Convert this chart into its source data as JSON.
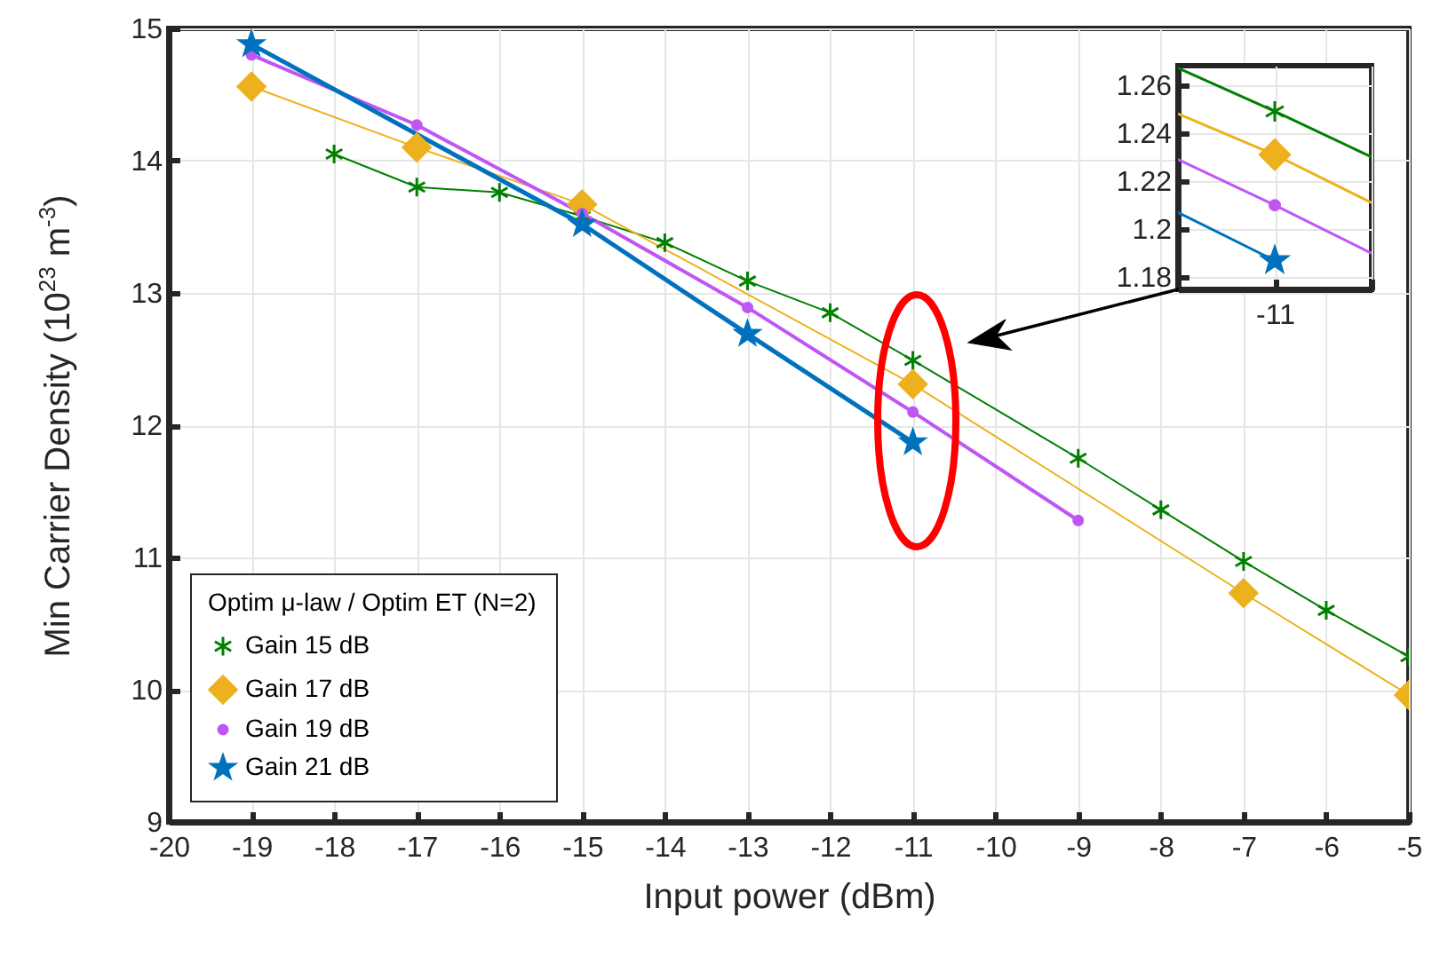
{
  "chart_data": [
    {
      "type": "line",
      "xlabel": "Input power (dBm)",
      "ylabel": "Min Carrier Density (10$^{23}$ m$^{-3}$)",
      "legend_title": "Optim μ-law / Optim ET (N=2)",
      "xlim": [
        -20,
        -5
      ],
      "xticks": [
        -20,
        -19,
        -18,
        -17,
        -16,
        -15,
        -14,
        -13,
        -12,
        -11,
        -10,
        -9,
        -8,
        -7,
        -6,
        -5
      ],
      "ylim": [
        9,
        15
      ],
      "yticks": [
        9,
        10,
        11,
        12,
        13,
        14,
        15
      ],
      "grid": true,
      "legend": "bottom left",
      "series": [
        {
          "name": "Gain 15 dB",
          "color": "#008000",
          "marker": "cross",
          "x": [
            -18,
            -17,
            -16,
            -15,
            -14,
            -13,
            -12,
            -11,
            -9,
            -8,
            -7,
            -6,
            -5
          ],
          "values": [
            14.05,
            13.8,
            13.76,
            13.58,
            13.38,
            13.09,
            12.85,
            12.49,
            11.75,
            11.36,
            10.97,
            10.6,
            10.25
          ]
        },
        {
          "name": "Gain 17 dB",
          "color": "#edb120",
          "marker": "diamond",
          "x": [
            -19,
            -17,
            -15,
            -11,
            -7,
            -5
          ],
          "values": [
            14.56,
            14.1,
            13.67,
            12.31,
            10.73,
            9.96
          ]
        },
        {
          "name": "Gain 19 dB",
          "color": "#bf55f5",
          "marker": "circle",
          "x": [
            -19,
            -17,
            -15,
            -13,
            -11,
            -9
          ],
          "values": [
            14.8,
            14.27,
            13.6,
            12.89,
            12.1,
            11.28
          ]
        },
        {
          "name": "Gain 21 dB",
          "color": "#0072bd",
          "marker": "star",
          "x": [
            -19,
            -15,
            -13,
            -11
          ],
          "values": [
            14.88,
            13.52,
            12.69,
            11.87
          ]
        }
      ]
    },
    {
      "type": "line",
      "categories": [
        null,
        "-11",
        null
      ],
      "ylim": [
        1.175,
        1.268
      ],
      "yticks": [
        1.18,
        1.2,
        1.22,
        1.24,
        1.26
      ],
      "grid": true,
      "series": [
        {
          "color": "#008000",
          "marker": "none",
          "values": [
            1.267,
            1.249,
            1.23
          ]
        },
        {
          "color": "#edb120",
          "marker": "none",
          "values": [
            1.248,
            1.231,
            1.211
          ]
        },
        {
          "color": "#bf55f5",
          "marker": "none",
          "values": [
            1.229,
            1.21,
            1.19
          ]
        },
        {
          "color": "#0072bd",
          "marker": "none",
          "values": [
            1.207,
            1.187,
            null
          ]
        },
        {
          "type": "scatter",
          "color": "#008000",
          "marker": "cross",
          "values": [
            null,
            1.249,
            null
          ]
        },
        {
          "type": "scatter",
          "color": "#edb120",
          "marker": "diamond",
          "values": [
            null,
            1.231,
            null
          ]
        },
        {
          "type": "scatter",
          "color": "#bf55f5",
          "marker": "circle",
          "values": [
            null,
            1.21,
            null
          ]
        },
        {
          "type": "scatter",
          "color": "#0072bd",
          "marker": "star",
          "values": [
            null,
            1.187,
            null
          ]
        }
      ]
    }
  ]
}
